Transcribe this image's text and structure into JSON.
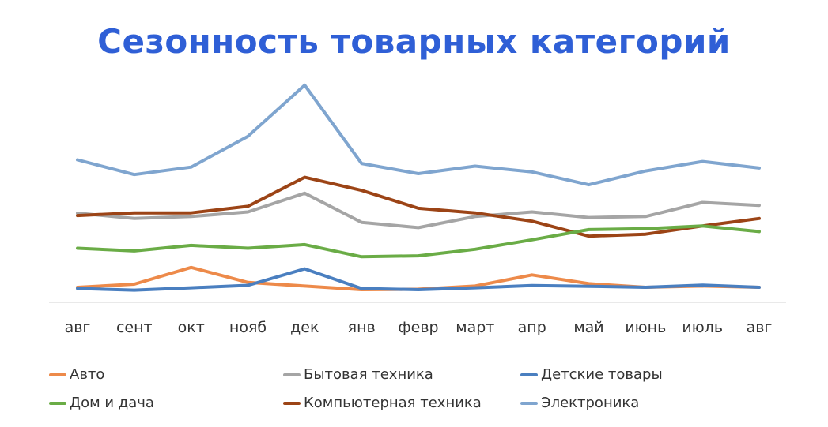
{
  "title": "Сезонность товарных категорий",
  "title_color": "#2f5fd6",
  "chart_data": {
    "type": "line",
    "title": "Сезонность товарных категорий",
    "categories": [
      "авг",
      "сент",
      "окт",
      "нояб",
      "дек",
      "янв",
      "февр",
      "март",
      "апр",
      "май",
      "июнь",
      "июль",
      "авг"
    ],
    "ylim": [
      0,
      100
    ],
    "grid": false,
    "legend_position": "bottom",
    "series": [
      {
        "name": "Авто",
        "color": "#ed8a4a",
        "values": [
          6.2,
          7.5,
          14.4,
          8.2,
          6.7,
          5.2,
          5.4,
          6.7,
          11.3,
          7.7,
          6.2,
          6.7,
          6.2
        ]
      },
      {
        "name": "Бытовая техника",
        "color": "#a5a5a5",
        "values": [
          36.8,
          34.6,
          35.4,
          37.3,
          45.0,
          33.0,
          30.8,
          35.4,
          37.3,
          35.0,
          35.4,
          41.2,
          40.0
        ]
      },
      {
        "name": "Детские товары",
        "color": "#4a7fc0",
        "values": [
          5.7,
          5.0,
          6.0,
          7.0,
          13.8,
          5.7,
          5.2,
          6.0,
          6.9,
          6.6,
          6.2,
          7.1,
          6.2
        ]
      },
      {
        "name": "Дом и дача",
        "color": "#6aac46",
        "values": [
          22.3,
          21.2,
          23.5,
          22.3,
          23.8,
          18.8,
          19.2,
          21.9,
          25.8,
          30.0,
          30.4,
          31.5,
          29.2
        ]
      },
      {
        "name": "Компьютерная техника",
        "color": "#9c4416",
        "values": [
          35.8,
          36.9,
          36.9,
          39.6,
          51.6,
          46.2,
          38.8,
          36.9,
          33.5,
          27.3,
          28.1,
          31.5,
          34.6
        ]
      },
      {
        "name": "Электроника",
        "color": "#7fa5cf",
        "values": [
          58.8,
          52.7,
          55.8,
          68.5,
          89.6,
          57.3,
          53.1,
          56.2,
          53.8,
          48.5,
          54.2,
          58.1,
          55.4
        ]
      }
    ]
  }
}
